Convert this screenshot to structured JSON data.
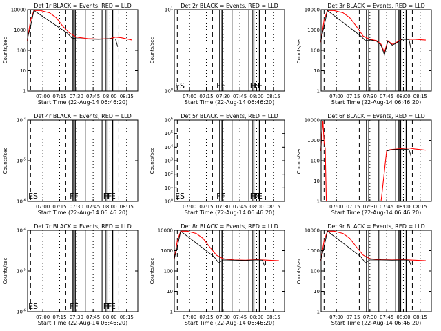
{
  "colors": {
    "events": "#000000",
    "lld": "#ff0000",
    "background": "#ffffff"
  },
  "chart_data": [
    {
      "type": "line",
      "title": "Det 1r BLACK = Events, RED = LLD",
      "xlabel": "Start Time (22-Aug-14 06:46:20)",
      "ylabel": "Counts/sec",
      "x_ticks": [
        "07:00",
        "07:15",
        "07:30",
        "07:45",
        "08:00",
        "08:15"
      ],
      "y_scale": "log",
      "ylim": [
        1,
        10000
      ],
      "y_ticks": [
        "1",
        "10",
        "100",
        "1000",
        "10000"
      ],
      "flags": [],
      "series": [
        {
          "name": "LLD",
          "color": "#ff0000",
          "x": [
            "06:46",
            "06:49",
            "06:52",
            "06:58",
            "07:06",
            "07:12",
            "07:18",
            "07:24",
            "07:30",
            "07:40",
            "07:50",
            "08:00",
            "08:05",
            "08:10",
            "08:20"
          ],
          "y": [
            300,
            3000,
            9000,
            9000,
            7000,
            4000,
            1500,
            700,
            450,
            380,
            360,
            380,
            450,
            420,
            320
          ]
        },
        {
          "name": "Events",
          "color": "#000000",
          "x": [
            "06:46",
            "06:49",
            "06:52",
            "07:22",
            "07:26",
            "07:30",
            "07:40",
            "07:50",
            "08:00",
            "08:05",
            "08:07"
          ],
          "y": [
            350,
            1500,
            9000,
            700,
            400,
            380,
            360,
            350,
            380,
            360,
            150
          ]
        }
      ]
    },
    {
      "type": "line",
      "title": "Det 2r BLACK = Events, RED = LLD",
      "xlabel": "Start Time (22-Aug-14 06:46:20)",
      "ylabel": "Counts/sec",
      "x_ticks": [
        "07:00",
        "07:15",
        "07:30",
        "07:45",
        "08:00",
        "08:15"
      ],
      "y_scale": "log",
      "ylim": [
        1,
        10
      ],
      "y_ticks": [
        "10^0",
        "10^1"
      ],
      "flags": [
        "ES",
        "FF",
        "FF",
        "FE"
      ],
      "series": []
    },
    {
      "type": "line",
      "title": "Det 3r BLACK = Events, RED = LLD",
      "xlabel": "Start Time (22-Aug-14 06:46:20)",
      "ylabel": "Counts/sec",
      "x_ticks": [
        "07:00",
        "07:15",
        "07:30",
        "07:45",
        "08:00",
        "08:15"
      ],
      "y_scale": "log",
      "ylim": [
        1,
        10000
      ],
      "y_ticks": [
        "1",
        "10",
        "100",
        "1000",
        "10000"
      ],
      "flags": [],
      "series": [
        {
          "name": "LLD",
          "color": "#ff0000",
          "x": [
            "06:46",
            "06:49",
            "06:52",
            "06:58",
            "07:06",
            "07:12",
            "07:18",
            "07:24",
            "07:30",
            "07:36",
            "07:40",
            "07:43",
            "07:46",
            "07:50",
            "07:54",
            "07:58",
            "08:00",
            "08:10",
            "08:20"
          ],
          "y": [
            250,
            3000,
            9000,
            9000,
            7000,
            4000,
            1500,
            500,
            350,
            300,
            200,
            80,
            300,
            200,
            250,
            350,
            350,
            350,
            320
          ]
        },
        {
          "name": "Events",
          "color": "#000000",
          "x": [
            "06:46",
            "06:49",
            "06:52",
            "07:22",
            "07:26",
            "07:30",
            "07:36",
            "07:40",
            "07:43",
            "07:46",
            "07:50",
            "07:54",
            "07:58",
            "08:00",
            "08:05",
            "08:07"
          ],
          "y": [
            300,
            1500,
            9000,
            500,
            300,
            330,
            280,
            180,
            60,
            280,
            180,
            230,
            330,
            350,
            340,
            100
          ]
        }
      ]
    },
    {
      "type": "line",
      "title": "Det 4r BLACK = Events, RED = LLD",
      "xlabel": "Start Time (22-Aug-14 06:46:20)",
      "ylabel": "Counts/sec",
      "x_ticks": [
        "07:00",
        "07:15",
        "07:30",
        "07:45",
        "08:00",
        "08:15"
      ],
      "y_scale": "log",
      "ylim": [
        1e-06,
        0.0001
      ],
      "y_ticks": [
        "10^-6",
        "10^-5",
        "10^-4"
      ],
      "flags": [
        "ES",
        "FF",
        "FF",
        "FE"
      ],
      "series": []
    },
    {
      "type": "line",
      "title": "Det 5r BLACK = Events, RED = LLD",
      "xlabel": "Start Time (22-Aug-14 06:46:20)",
      "ylabel": "Counts/sec",
      "x_ticks": [
        "07:00",
        "07:15",
        "07:30",
        "07:45",
        "08:00",
        "08:15"
      ],
      "y_scale": "log",
      "ylim": [
        1,
        1000000.0
      ],
      "y_ticks": [
        "10^0",
        "10^1",
        "10^2",
        "10^3",
        "10^4",
        "10^5",
        "10^6"
      ],
      "flags": [
        "ES",
        "FF",
        "FF",
        "FE"
      ],
      "series": []
    },
    {
      "type": "line",
      "title": "Det 6r BLACK = Events, RED = LLD",
      "xlabel": "Start Time (22-Aug-14 06:46:20)",
      "ylabel": "Counts/sec",
      "x_ticks": [
        "07:00",
        "07:15",
        "07:30",
        "07:45",
        "08:00",
        "08:15"
      ],
      "y_scale": "log",
      "ylim": [
        1,
        10000
      ],
      "y_ticks": [
        "1",
        "10",
        "100",
        "1000",
        "10000"
      ],
      "flags": [],
      "series": [
        {
          "name": "LLD",
          "color": "#ff0000",
          "x": [
            "06:46",
            "06:47",
            "06:48",
            "06:49",
            "06:50",
            "06:51",
            "07:40",
            "07:41",
            "07:42",
            "07:43",
            "07:44",
            "07:45",
            "07:48",
            "07:55",
            "08:00",
            "08:05",
            "08:10",
            "08:20"
          ],
          "y": [
            300,
            2000,
            9000,
            800,
            400,
            1,
            1,
            3,
            10,
            30,
            100,
            300,
            350,
            380,
            400,
            420,
            380,
            330
          ]
        },
        {
          "name": "Events",
          "color": "#000000",
          "x": [
            "07:45",
            "07:50",
            "08:00",
            "08:05",
            "08:07"
          ],
          "y": [
            300,
            350,
            370,
            350,
            150
          ]
        }
      ]
    },
    {
      "type": "line",
      "title": "Det 7r BLACK = Events, RED = LLD",
      "xlabel": "Start Time (22-Aug-14 06:46:20)",
      "ylabel": "Counts/sec",
      "x_ticks": [
        "07:00",
        "07:15",
        "07:30",
        "07:45",
        "08:00",
        "08:15"
      ],
      "y_scale": "log",
      "ylim": [
        1e-06,
        0.0001
      ],
      "y_ticks": [
        "10^-6",
        "10^-5",
        "10^-4"
      ],
      "flags": [
        "ES",
        "FF",
        "FF",
        "FE"
      ],
      "series": []
    },
    {
      "type": "line",
      "title": "Det 8r BLACK = Events, RED = LLD",
      "xlabel": "Start Time (22-Aug-14 06:46:20)",
      "ylabel": "Counts/sec",
      "x_ticks": [
        "07:00",
        "07:15",
        "07:30",
        "07:45",
        "08:00",
        "08:15"
      ],
      "y_scale": "log",
      "ylim": [
        1,
        10000
      ],
      "y_ticks": [
        "1",
        "10",
        "100",
        "1000",
        "10000"
      ],
      "flags": [],
      "series": [
        {
          "name": "LLD",
          "color": "#ff0000",
          "x": [
            "06:46",
            "06:49",
            "06:52",
            "06:58",
            "07:06",
            "07:12",
            "07:18",
            "07:24",
            "07:30",
            "07:40",
            "07:50",
            "08:00",
            "08:10",
            "08:20"
          ],
          "y": [
            300,
            3000,
            9000,
            9000,
            7000,
            4000,
            1500,
            600,
            400,
            350,
            340,
            360,
            340,
            320
          ]
        },
        {
          "name": "Events",
          "color": "#000000",
          "x": [
            "06:46",
            "06:49",
            "06:52",
            "07:22",
            "07:26",
            "07:30",
            "07:40",
            "07:50",
            "08:00",
            "08:05",
            "08:07"
          ],
          "y": [
            350,
            1500,
            9000,
            500,
            250,
            350,
            340,
            330,
            350,
            340,
            180
          ]
        }
      ]
    },
    {
      "type": "line",
      "title": "Det 9r BLACK = Events, RED = LLD",
      "xlabel": "Start Time (22-Aug-14 06:46:20)",
      "ylabel": "Counts/sec",
      "x_ticks": [
        "07:00",
        "07:15",
        "07:30",
        "07:45",
        "08:00",
        "08:15"
      ],
      "y_scale": "log",
      "ylim": [
        1,
        10000
      ],
      "y_ticks": [
        "1",
        "10",
        "100",
        "1000",
        "10000"
      ],
      "flags": [],
      "series": [
        {
          "name": "LLD",
          "color": "#ff0000",
          "x": [
            "06:46",
            "06:49",
            "06:52",
            "06:58",
            "07:06",
            "07:12",
            "07:18",
            "07:24",
            "07:30",
            "07:40",
            "07:50",
            "08:00",
            "08:10",
            "08:20"
          ],
          "y": [
            300,
            3000,
            9000,
            9000,
            7000,
            4000,
            1500,
            600,
            400,
            360,
            350,
            360,
            340,
            320
          ]
        },
        {
          "name": "Events",
          "color": "#000000",
          "x": [
            "06:46",
            "06:49",
            "06:52",
            "07:22",
            "07:26",
            "07:30",
            "07:40",
            "07:50",
            "08:00",
            "08:05",
            "08:07"
          ],
          "y": [
            350,
            1500,
            9000,
            500,
            250,
            350,
            350,
            340,
            350,
            340,
            180
          ]
        }
      ]
    }
  ]
}
